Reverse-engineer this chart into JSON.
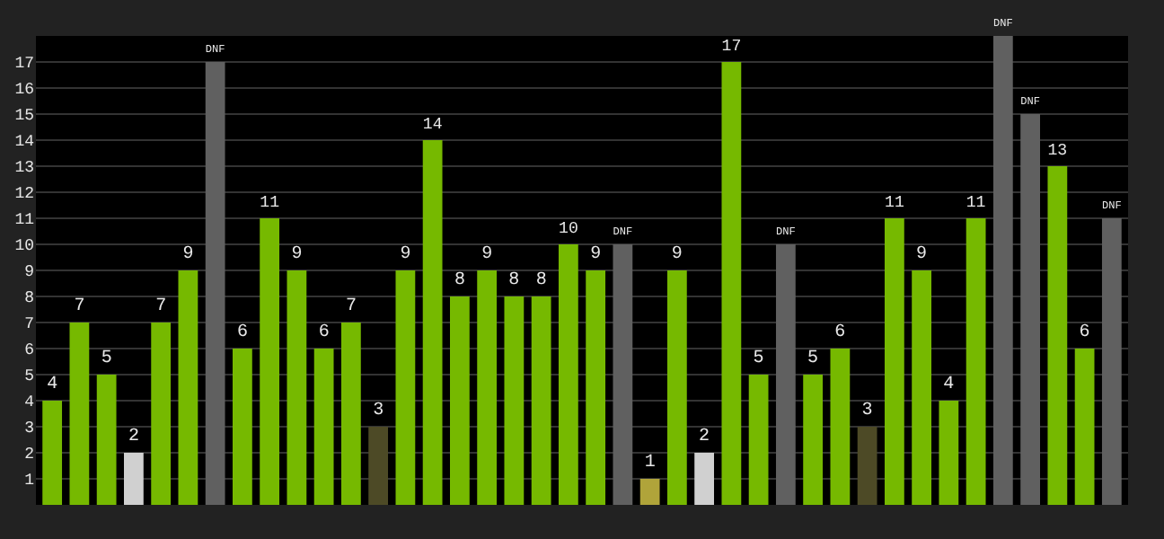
{
  "chart_data": {
    "type": "bar",
    "categories": [
      null,
      null,
      null,
      null,
      null,
      null,
      null,
      null,
      null,
      null,
      null,
      null,
      null,
      null,
      null,
      null,
      null,
      null,
      null,
      null,
      null,
      null,
      null,
      null,
      null,
      null,
      null,
      null,
      null,
      null,
      null,
      null,
      null,
      null,
      null,
      null,
      null,
      null,
      null,
      null
    ],
    "values": [
      4,
      7,
      5,
      2,
      7,
      9,
      17,
      6,
      11,
      9,
      6,
      7,
      3,
      9,
      14,
      8,
      9,
      8,
      8,
      10,
      9,
      10,
      1,
      9,
      2,
      17,
      5,
      10,
      5,
      6,
      3,
      11,
      9,
      4,
      11,
      18,
      15,
      13,
      6,
      11
    ],
    "value_labels": [
      "4",
      "7",
      "5",
      "2",
      "7",
      "9",
      "DNF",
      "6",
      "11",
      "9",
      "6",
      "7",
      "3",
      "9",
      "14",
      "8",
      "9",
      "8",
      "8",
      "10",
      "9",
      "DNF",
      "1",
      "9",
      "2",
      "17",
      "5",
      "DNF",
      "5",
      "6",
      "3",
      "11",
      "9",
      "4",
      "11",
      "DNF",
      "DNF",
      "13",
      "6",
      "DNF"
    ],
    "colors": [
      "#76b900",
      "#76b900",
      "#76b900",
      "#d0d0d0",
      "#76b900",
      "#76b900",
      "#606060",
      "#76b900",
      "#76b900",
      "#76b900",
      "#76b900",
      "#76b900",
      "#4d4a26",
      "#76b900",
      "#76b900",
      "#76b900",
      "#76b900",
      "#76b900",
      "#76b900",
      "#76b900",
      "#76b900",
      "#606060",
      "#b0a43a",
      "#76b900",
      "#d0d0d0",
      "#76b900",
      "#76b900",
      "#606060",
      "#76b900",
      "#76b900",
      "#4d4a26",
      "#76b900",
      "#76b900",
      "#76b900",
      "#76b900",
      "#606060",
      "#606060",
      "#76b900",
      "#76b900",
      "#606060"
    ],
    "ylim": [
      0,
      18
    ],
    "yticks": [
      1,
      2,
      3,
      4,
      5,
      6,
      7,
      8,
      9,
      10,
      11,
      12,
      13,
      14,
      15,
      16,
      17
    ],
    "grid": "y",
    "tick_labels": "y"
  }
}
